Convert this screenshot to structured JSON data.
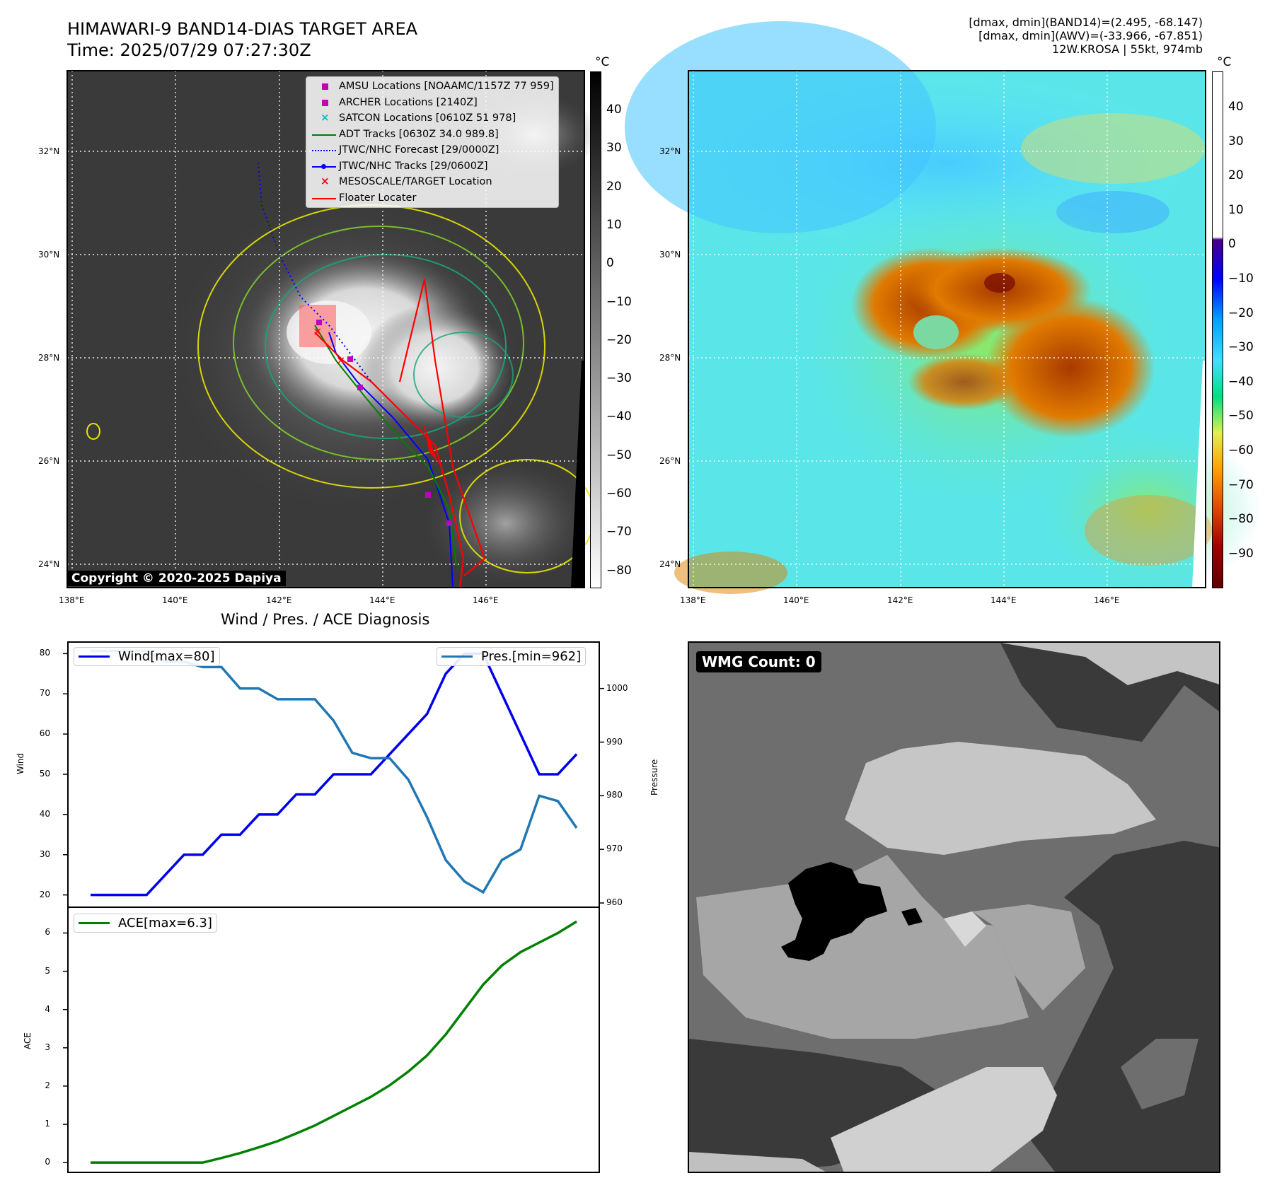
{
  "header": {
    "title_line1": "HIMAWARI-9 BAND14-DIAS TARGET AREA",
    "title_line2": "Time: 2025/07/29 07:27:30Z",
    "info_line1": "[dmax, dmin](BAND14)=(2.495, -68.147)",
    "info_line2": "[dmax, dmin](AWV)=(-33.966, -67.851)",
    "info_line3": "12W.KROSA | 55kt, 974mb"
  },
  "map_axes": {
    "lat_ticks": [
      "32°N",
      "30°N",
      "28°N",
      "26°N",
      "24°N"
    ],
    "lon_ticks": [
      "138°E",
      "140°E",
      "142°E",
      "144°E",
      "146°E"
    ]
  },
  "ir_panel": {
    "legend": [
      {
        "label": "AMSU Locations [NOAAMC/1157Z 77 959]",
        "color": "#c000c0",
        "symbol": "square"
      },
      {
        "label": "ARCHER Locations [2140Z]",
        "color": "#c000c0",
        "symbol": "square"
      },
      {
        "label": "SATCON Locations [0610Z 51 978]",
        "color": "#00bfbf",
        "symbol": "x"
      },
      {
        "label": "ADT Tracks [0630Z 34.0 989.8]",
        "color": "#008000",
        "symbol": "line"
      },
      {
        "label": "JTWC/NHC Forecast [29/0000Z]",
        "color": "#0000ff",
        "symbol": "dotted"
      },
      {
        "label": "JTWC/NHC Tracks [29/0600Z]",
        "color": "#0000ff",
        "symbol": "line-dot"
      },
      {
        "label": "MESOSCALE/TARGET Location",
        "color": "#ff0000",
        "symbol": "x"
      },
      {
        "label": "Floater Locater",
        "color": "#ff0000",
        "symbol": "line"
      }
    ],
    "copyright": "Copyright © 2020-2025 Dapiya",
    "colorbar_unit": "°C",
    "colorbar_ticks": [
      "40",
      "30",
      "20",
      "10",
      "0",
      "−10",
      "−20",
      "−30",
      "−40",
      "−50",
      "−60",
      "−70",
      "−80"
    ]
  },
  "wv_panel": {
    "colorbar_unit": "°C",
    "colorbar_ticks": [
      "40",
      "30",
      "20",
      "10",
      "0",
      "−10",
      "−20",
      "−30",
      "−40",
      "−50",
      "−60",
      "−70",
      "−80",
      "−90"
    ]
  },
  "diagnosis": {
    "title": "Wind / Pres. / ACE Diagnosis",
    "wind_label": "Wind",
    "pressure_label": "Pressure",
    "ace_label": "ACE",
    "wind_legend": "Wind[max=80]",
    "pressure_legend": "Pres.[min=962]",
    "ace_legend": "ACE[max=6.3]",
    "wind_ticks": [
      "80",
      "70",
      "60",
      "50",
      "40",
      "30",
      "20"
    ],
    "pressure_ticks": [
      "1000",
      "990",
      "980",
      "970",
      "960"
    ],
    "ace_ticks": [
      "6",
      "5",
      "4",
      "3",
      "2",
      "1",
      "0"
    ],
    "wind_color": "#0000ee",
    "pressure_color": "#1f77b4",
    "ace_color": "#008000"
  },
  "wmg_panel": {
    "badge": "WMG Count: 0"
  },
  "chart_data": [
    {
      "type": "line",
      "title": "Wind / Pres. / ACE Diagnosis",
      "series": [
        {
          "name": "Wind[max=80]",
          "axis": "Wind",
          "values": [
            20,
            20,
            20,
            20,
            25,
            30,
            30,
            35,
            35,
            40,
            40,
            45,
            45,
            50,
            50,
            50,
            55,
            60,
            65,
            75,
            80,
            80,
            70,
            60,
            50,
            50,
            55
          ]
        },
        {
          "name": "Pres.[min=962]",
          "axis": "Pressure",
          "values": [
            1007,
            1007,
            1007,
            1007,
            1005,
            1005,
            1004,
            1004,
            1000,
            1000,
            998,
            998,
            998,
            994,
            988,
            987,
            987,
            983,
            976,
            968,
            964,
            962,
            968,
            970,
            980,
            979,
            974
          ]
        }
      ],
      "ylim_wind": [
        18,
        82
      ],
      "ylim_pressure": [
        960,
        1008
      ]
    },
    {
      "type": "line",
      "series": [
        {
          "name": "ACE[max=6.3]",
          "values": [
            0,
            0,
            0,
            0,
            0,
            0,
            0,
            0.12,
            0.25,
            0.4,
            0.56,
            0.76,
            0.97,
            1.22,
            1.47,
            1.72,
            2.02,
            2.38,
            2.8,
            3.35,
            4.0,
            4.65,
            5.15,
            5.5,
            5.75,
            6.0,
            6.3
          ]
        }
      ],
      "ylim": [
        -0.2,
        6.6
      ]
    }
  ]
}
